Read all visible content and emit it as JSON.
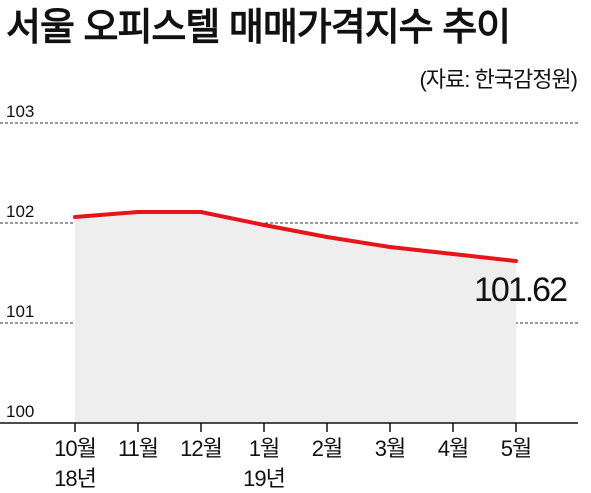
{
  "chart_data": {
    "type": "area",
    "title": "서울 오피스텔 매매가격지수 추이",
    "source": "(자료: 한국감정원)",
    "categories": [
      "10월",
      "11월",
      "12월",
      "1월",
      "2월",
      "3월",
      "4월",
      "5월"
    ],
    "year_labels": [
      {
        "category_index": 0,
        "text": "18년"
      },
      {
        "category_index": 3,
        "text": "19년"
      }
    ],
    "series": [
      {
        "values": [
          102.06,
          102.11,
          102.11,
          101.98,
          101.86,
          101.76,
          101.69,
          101.62
        ],
        "color": "#e8141b"
      }
    ],
    "ylim": [
      100,
      103
    ],
    "yticks": [
      "100",
      "101",
      "102",
      "103"
    ],
    "grid": true,
    "grid_style": "dashed",
    "area_fill": "#eeeeee",
    "annotation": {
      "category_index": 7,
      "text": "101.62"
    }
  }
}
